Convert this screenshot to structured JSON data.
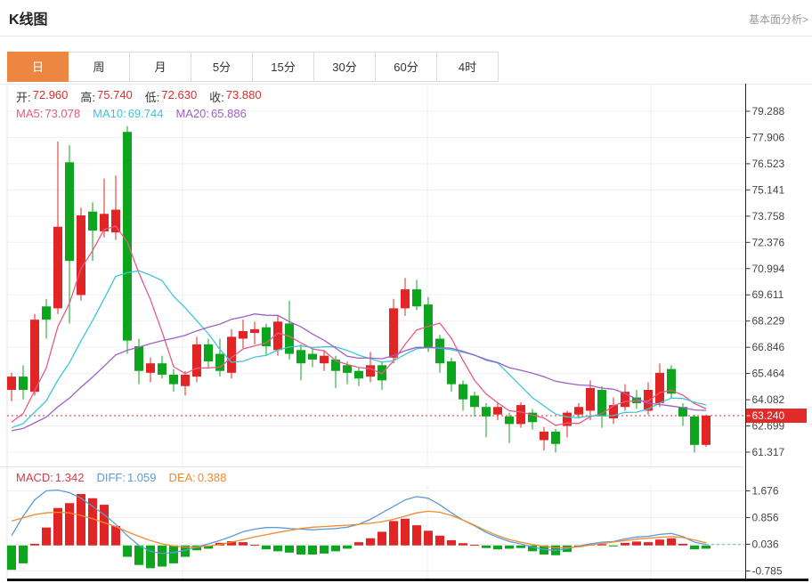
{
  "page": {
    "title": "K线图",
    "link": "基本面分析>"
  },
  "tabs": {
    "items": [
      {
        "label": "日",
        "active": true
      },
      {
        "label": "周",
        "active": false
      },
      {
        "label": "月",
        "active": false
      },
      {
        "label": "5分",
        "active": false
      },
      {
        "label": "15分",
        "active": false
      },
      {
        "label": "30分",
        "active": false
      },
      {
        "label": "60分",
        "active": false
      },
      {
        "label": "4时",
        "active": false
      }
    ]
  },
  "info": {
    "ohlc": {
      "open": {
        "label": "开:",
        "value": "72.960"
      },
      "high": {
        "label": "高:",
        "value": "75.740"
      },
      "low": {
        "label": "低:",
        "value": "72.630"
      },
      "close": {
        "label": "收:",
        "value": "73.880"
      }
    },
    "ma": {
      "ma5": {
        "label": "MA5:",
        "value": "73.078"
      },
      "ma10": {
        "label": "MA10:",
        "value": "69.744"
      },
      "ma20": {
        "label": "MA20:",
        "value": "65.886"
      }
    },
    "macd": {
      "macd": {
        "label": "MACD:",
        "value": "1.342"
      },
      "diff": {
        "label": "DIFF:",
        "value": "1.059"
      },
      "dea": {
        "label": "DEA:",
        "value": "0.388"
      }
    }
  },
  "colors": {
    "up": "#e12525",
    "down": "#0ca51d",
    "ma5": "#e85a85",
    "ma10": "#3ec6d6",
    "ma20": "#a05fc5",
    "diff_line": "#5c9bd5",
    "dea_line": "#f28a2e",
    "accent_tab": "#ed8640",
    "price_badge": "#e12b2b",
    "ohlc_value": "#e12b2b",
    "macd_label": "#d43c4c",
    "axis_text": "#444444"
  },
  "chart_data": {
    "type": "candlestick",
    "title": "K线图",
    "legend": [
      "MA5",
      "MA10",
      "MA20",
      "MACD",
      "DIFF",
      "DEA"
    ],
    "price_axis_ticks": [
      "79.288",
      "77.906",
      "76.523",
      "75.141",
      "73.758",
      "72.376",
      "70.994",
      "69.611",
      "68.229",
      "66.846",
      "65.464",
      "64.082",
      "62.699",
      "61.317"
    ],
    "macd_axis_ticks": [
      "1.676",
      "0.856",
      "0.036",
      "-0.785"
    ],
    "last_price": "63.240",
    "grid": true,
    "legend_position": "top-left",
    "ma_periods": [
      5,
      10,
      20
    ],
    "history_pad_close": 62.3,
    "candles": [
      [
        64.6,
        65.5,
        64.0,
        65.3
      ],
      [
        65.3,
        65.9,
        64.1,
        64.6
      ],
      [
        64.5,
        68.6,
        64.3,
        68.3
      ],
      [
        69.0,
        69.4,
        67.3,
        68.3
      ],
      [
        68.9,
        77.7,
        68.6,
        73.2
      ],
      [
        76.6,
        77.5,
        68.1,
        71.4
      ],
      [
        69.6,
        74.2,
        69.3,
        73.8
      ],
      [
        74.0,
        74.5,
        71.4,
        73.0
      ],
      [
        72.96,
        75.74,
        72.63,
        73.88
      ],
      [
        72.9,
        75.9,
        72.5,
        74.1
      ],
      [
        78.2,
        78.5,
        66.5,
        67.2
      ],
      [
        66.9,
        67.3,
        64.9,
        65.6
      ],
      [
        65.5,
        66.3,
        65.0,
        66.0
      ],
      [
        66.0,
        66.4,
        65.2,
        65.4
      ],
      [
        65.4,
        65.7,
        64.5,
        64.9
      ],
      [
        64.8,
        65.6,
        64.3,
        65.4
      ],
      [
        65.3,
        67.4,
        65.0,
        67.0
      ],
      [
        67.0,
        67.3,
        65.8,
        66.1
      ],
      [
        66.5,
        67.3,
        65.3,
        65.6
      ],
      [
        65.5,
        67.8,
        65.2,
        67.4
      ],
      [
        67.3,
        68.3,
        66.8,
        67.7
      ],
      [
        67.6,
        68.2,
        67.0,
        67.8
      ],
      [
        67.9,
        68.1,
        66.4,
        66.9
      ],
      [
        66.7,
        68.5,
        66.4,
        68.2
      ],
      [
        68.1,
        69.3,
        66.2,
        66.5
      ],
      [
        66.7,
        67.0,
        65.1,
        66.0
      ],
      [
        66.5,
        66.8,
        65.8,
        66.2
      ],
      [
        66.0,
        66.7,
        65.6,
        66.4
      ],
      [
        66.2,
        66.4,
        64.7,
        65.6
      ],
      [
        65.9,
        66.1,
        64.9,
        65.5
      ],
      [
        65.6,
        65.8,
        64.8,
        65.2
      ],
      [
        65.3,
        66.6,
        65.0,
        65.9
      ],
      [
        65.9,
        66.1,
        64.6,
        65.1
      ],
      [
        66.3,
        69.4,
        66.0,
        68.9
      ],
      [
        68.9,
        70.5,
        68.5,
        69.9
      ],
      [
        69.9,
        70.4,
        68.8,
        69.0
      ],
      [
        69.1,
        69.5,
        66.6,
        66.8
      ],
      [
        67.3,
        67.5,
        65.5,
        66.0
      ],
      [
        66.1,
        66.3,
        64.5,
        64.9
      ],
      [
        64.9,
        65.1,
        63.5,
        64.1
      ],
      [
        64.3,
        64.5,
        63.2,
        63.7
      ],
      [
        63.7,
        63.9,
        62.1,
        63.2
      ],
      [
        63.3,
        63.95,
        63.0,
        63.7
      ],
      [
        63.2,
        63.4,
        61.8,
        62.8
      ],
      [
        62.8,
        63.95,
        62.6,
        63.8
      ],
      [
        63.4,
        63.6,
        62.5,
        62.9
      ],
      [
        61.95,
        62.65,
        61.4,
        62.4
      ],
      [
        62.4,
        62.55,
        61.3,
        61.75
      ],
      [
        62.7,
        63.5,
        62.1,
        63.4
      ],
      [
        63.3,
        63.9,
        63.1,
        63.7
      ],
      [
        63.5,
        65.1,
        63.0,
        64.7
      ],
      [
        64.6,
        64.8,
        62.6,
        63.2
      ],
      [
        63.1,
        64.2,
        62.8,
        63.8
      ],
      [
        63.7,
        64.9,
        63.5,
        64.5
      ],
      [
        64.2,
        64.6,
        63.6,
        63.9
      ],
      [
        63.5,
        65.0,
        63.3,
        64.6
      ],
      [
        63.9,
        66.0,
        63.7,
        65.5
      ],
      [
        65.7,
        65.9,
        64.2,
        64.4
      ],
      [
        63.7,
        63.9,
        62.7,
        63.2
      ],
      [
        63.2,
        63.3,
        61.3,
        61.7
      ],
      [
        61.7,
        63.3,
        61.6,
        63.24
      ]
    ],
    "macd": {
      "hist": [
        -0.75,
        -0.55,
        0.05,
        0.55,
        1.15,
        1.3,
        1.58,
        1.45,
        1.25,
        0.6,
        -0.35,
        -0.6,
        -0.7,
        -0.65,
        -0.55,
        -0.35,
        -0.15,
        -0.1,
        0.08,
        0.13,
        0.1,
        0.02,
        -0.12,
        -0.18,
        -0.22,
        -0.28,
        -0.28,
        -0.25,
        -0.18,
        -0.1,
        0.1,
        0.22,
        0.42,
        0.75,
        0.82,
        0.62,
        0.45,
        0.3,
        0.16,
        0.07,
        0.02,
        -0.08,
        -0.12,
        -0.1,
        -0.08,
        -0.18,
        -0.28,
        -0.3,
        -0.2,
        -0.05,
        0.03,
        0.04,
        -0.03,
        0.08,
        0.12,
        0.1,
        0.18,
        0.22,
        0.05,
        -0.12,
        -0.1
      ],
      "diff": [
        0.3,
        0.9,
        1.4,
        1.68,
        1.7,
        1.62,
        1.45,
        1.2,
        0.95,
        0.65,
        0.3,
        0.0,
        -0.18,
        -0.25,
        -0.22,
        -0.15,
        -0.05,
        0.05,
        0.15,
        0.28,
        0.42,
        0.5,
        0.55,
        0.55,
        0.52,
        0.5,
        0.48,
        0.5,
        0.52,
        0.56,
        0.65,
        0.8,
        1.0,
        1.2,
        1.4,
        1.5,
        1.45,
        1.25,
        1.0,
        0.78,
        0.6,
        0.4,
        0.25,
        0.12,
        0.05,
        -0.05,
        -0.12,
        -0.15,
        -0.1,
        -0.02,
        0.05,
        0.1,
        0.12,
        0.2,
        0.26,
        0.28,
        0.34,
        0.37,
        0.27,
        0.1,
        0.03
      ],
      "dea": [
        0.75,
        0.85,
        0.95,
        1.0,
        1.02,
        1.0,
        0.92,
        0.82,
        0.7,
        0.58,
        0.42,
        0.28,
        0.15,
        0.05,
        -0.02,
        -0.05,
        -0.05,
        -0.02,
        0.03,
        0.1,
        0.18,
        0.26,
        0.33,
        0.4,
        0.46,
        0.52,
        0.56,
        0.58,
        0.6,
        0.62,
        0.65,
        0.68,
        0.73,
        0.8,
        0.9,
        1.0,
        1.05,
        1.02,
        0.92,
        0.78,
        0.62,
        0.45,
        0.3,
        0.18,
        0.1,
        0.03,
        -0.03,
        -0.07,
        -0.07,
        -0.04,
        0.01,
        0.06,
        0.11,
        0.15,
        0.19,
        0.22,
        0.25,
        0.27,
        0.24,
        0.17,
        0.08
      ]
    }
  }
}
